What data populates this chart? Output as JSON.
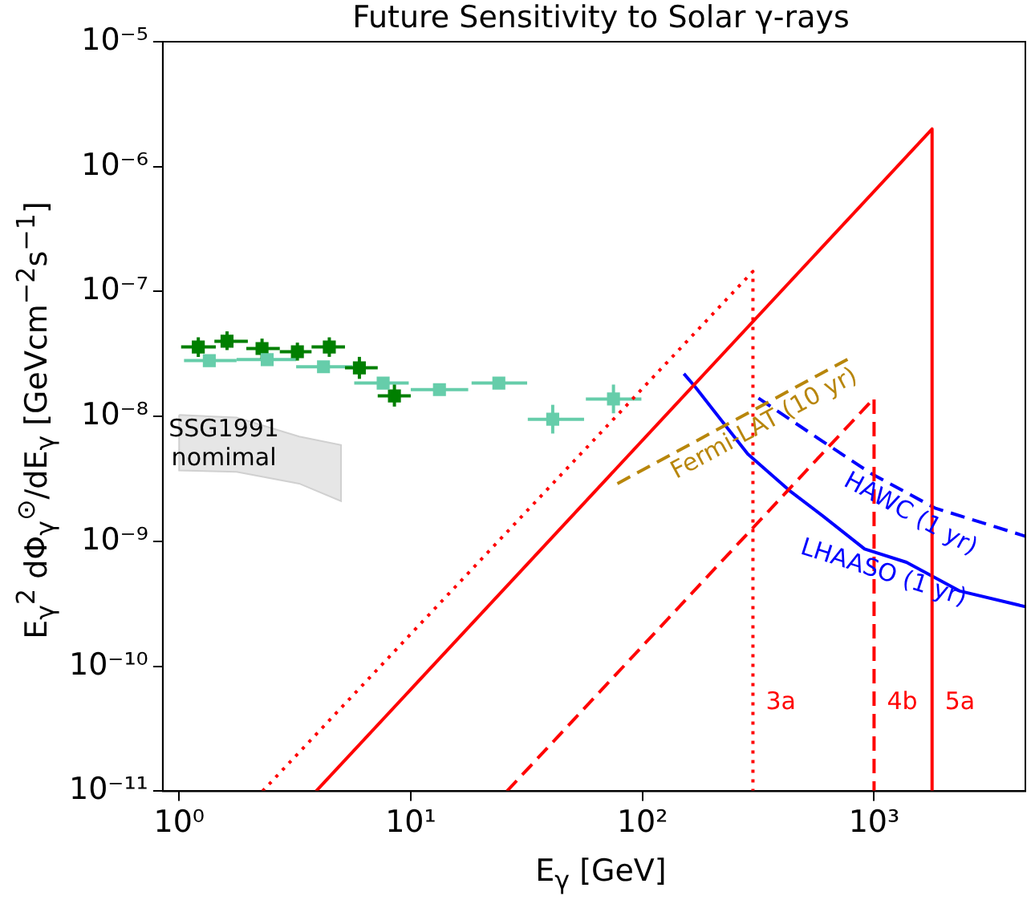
{
  "chart_data": {
    "type": "line",
    "title": "Future Sensitivity to Solar γ-rays",
    "xlabel": "E$_{γ}$ [GeV]",
    "ylabel": "E$_{γ}$$^{2}$ dΦ$_{γ}$$^{⊙}$/dE$_{γ}$ [GeVcm$^{−2}$s$^{−1}$]",
    "annotations": [
      "SSG1991 nomimal"
    ],
    "log": "xy",
    "grid": false,
    "legend": false,
    "xlim": [
      0.85,
      4500
    ],
    "xticks": [
      {
        "value": 1,
        "label": "10⁰"
      },
      {
        "value": 10,
        "label": "10¹"
      },
      {
        "value": 100,
        "label": "10²"
      },
      {
        "value": 1000,
        "label": "10³"
      }
    ],
    "ylim": [
      1e-11,
      1e-05
    ],
    "yticks": [
      {
        "value": 1e-11,
        "label": "10⁻¹¹"
      },
      {
        "value": 1e-10,
        "label": "10⁻¹⁰"
      },
      {
        "value": 1e-09,
        "label": "10⁻⁹"
      },
      {
        "value": 1e-08,
        "label": "10⁻⁸"
      },
      {
        "value": 1e-07,
        "label": "10⁻⁷"
      },
      {
        "value": 1e-06,
        "label": "10⁻⁶"
      },
      {
        "value": 1e-05,
        "label": "10⁻⁵"
      }
    ],
    "series": [
      {
        "type": "area",
        "color": "#e6e6e6",
        "x": [
          1.0,
          1.77,
          3.3,
          5.0
        ],
        "values": [
          null,
          null,
          null,
          null
        ],
        "lower": [
          3.7e-09,
          3.6e-09,
          2.9e-09,
          2.1e-09
        ],
        "upper": [
          1.03e-08,
          9.8e-09,
          6.9e-09,
          5.9e-09
        ]
      },
      {
        "type": "scatter",
        "marker": "square",
        "color": "#66cdaa",
        "x": [
          1.35,
          2.4,
          4.2,
          7.6,
          13.3,
          24,
          41,
          75
        ],
        "values": [
          2.8e-08,
          2.85e-08,
          2.5e-08,
          1.85e-08,
          1.64e-08,
          1.85e-08,
          9.5e-09,
          1.38e-08
        ],
        "xerrors": [
          [
            1.05,
            1.77
          ],
          [
            1.77,
            3.2
          ],
          [
            3.2,
            5.6
          ],
          [
            5.7,
            9.8
          ],
          [
            10,
            17.7
          ],
          [
            18.3,
            31.8
          ],
          [
            32,
            56
          ],
          [
            57,
            99
          ]
        ],
        "errors": [
          null,
          null,
          null,
          null,
          null,
          null,
          [
            7.3e-09,
            1.24e-08
          ],
          [
            1.06e-08,
            1.8e-08
          ]
        ]
      },
      {
        "type": "scatter",
        "marker": "square",
        "color": "#007f00",
        "x": [
          1.21,
          1.61,
          2.28,
          3.24,
          4.45,
          6.0,
          8.5
        ],
        "values": [
          3.6e-08,
          4e-08,
          3.5e-08,
          3.3e-08,
          3.6e-08,
          2.45e-08,
          1.46e-08
        ],
        "xerrors": [
          [
            1.02,
            1.44
          ],
          [
            1.42,
            1.98
          ],
          [
            1.95,
            2.72
          ],
          [
            2.72,
            3.73
          ],
          [
            3.73,
            5.2
          ],
          [
            5.2,
            7.2
          ],
          [
            7.2,
            10
          ]
        ],
        "errors": [
          [
            3e-08,
            4.3e-08
          ],
          [
            3.4e-08,
            4.8e-08
          ],
          [
            2.9e-08,
            4.2e-08
          ],
          [
            2.8e-08,
            3.9e-08
          ],
          [
            3e-08,
            4.3e-08
          ],
          [
            2e-08,
            3e-08
          ],
          [
            1.2e-08,
            1.8e-08
          ]
        ]
      },
      {
        "name": "3a",
        "line_style": "dotted",
        "color": "#ff0000",
        "x": [
          2.29,
          300,
          300
        ],
        "values": [
          1e-11,
          1.45e-07,
          1e-11
        ]
      },
      {
        "name": "4b",
        "line_style": "dashed",
        "color": "#ff0000",
        "x": [
          26,
          1000,
          1000
        ],
        "values": [
          1e-11,
          1.4e-08,
          1e-11
        ]
      },
      {
        "name": "5a",
        "line_style": "solid",
        "color": "#ff0000",
        "x": [
          3.9,
          1780,
          1780
        ],
        "values": [
          1e-11,
          2e-06,
          1e-11
        ]
      },
      {
        "name": "Fermi-LAT (10 yr)",
        "line_style": "dashed",
        "color": "#b8860b",
        "x": [
          78,
          776
        ],
        "values": [
          2.9e-09,
          2.9e-08
        ]
      },
      {
        "name": "HAWC (1 yr)",
        "line_style": "dashed",
        "color": "#0000ff",
        "x": [
          317,
          540,
          970,
          1830,
          4500
        ],
        "values": [
          1.4e-08,
          7.2e-09,
          3.5e-09,
          1.85e-09,
          1.1e-09
        ]
      },
      {
        "name": "LHAASO (1 yr)",
        "line_style": "solid",
        "color": "#0000ff",
        "x": [
          151,
          170,
          285,
          437,
          600,
          910,
          1380,
          2350,
          4500
        ],
        "values": [
          2.2e-08,
          1.7e-08,
          5e-09,
          2.5e-09,
          1.6e-09,
          8.7e-10,
          6.8e-10,
          4e-10,
          3e-10
        ]
      }
    ]
  }
}
